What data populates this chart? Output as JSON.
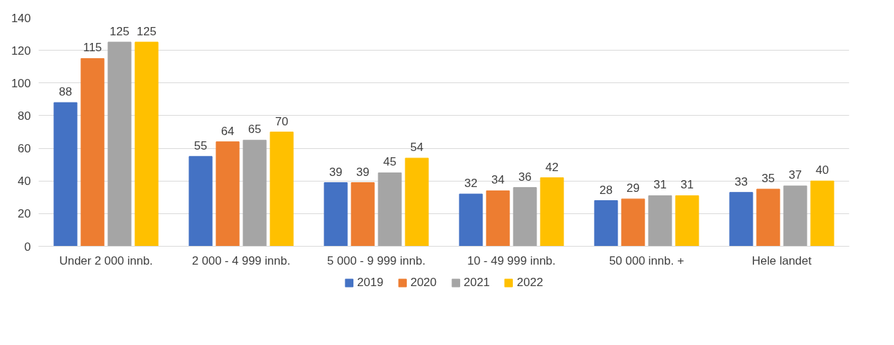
{
  "chart_data": {
    "type": "bar",
    "categories": [
      "Under 2 000 innb.",
      "2 000 - 4 999 innb.",
      "5 000 - 9 999 innb.",
      "10 - 49 999 innb.",
      "50 000 innb. +",
      "Hele landet"
    ],
    "series": [
      {
        "name": "2019",
        "color": "#4472c4",
        "values": [
          88,
          55,
          39,
          32,
          28,
          33
        ]
      },
      {
        "name": "2020",
        "color": "#ed7d31",
        "values": [
          115,
          64,
          39,
          34,
          29,
          35
        ]
      },
      {
        "name": "2021",
        "color": "#a5a5a5",
        "values": [
          125,
          65,
          45,
          36,
          31,
          37
        ]
      },
      {
        "name": "2022",
        "color": "#ffc000",
        "values": [
          125,
          70,
          54,
          42,
          31,
          40
        ]
      }
    ],
    "ylim": [
      0,
      140
    ],
    "yticks": [
      0,
      20,
      40,
      60,
      80,
      100,
      120,
      140
    ],
    "grid": "y",
    "legend": "bottom",
    "data_labels": true
  }
}
